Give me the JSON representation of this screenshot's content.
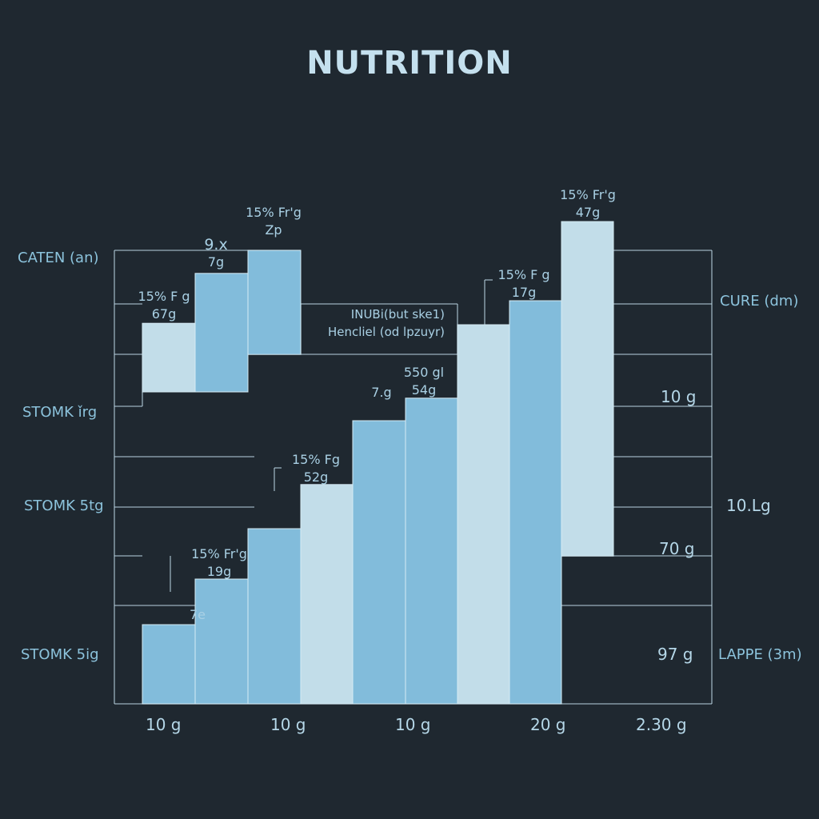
{
  "chart_data": {
    "type": "bar",
    "title": "NUTRITION",
    "x_tick_labels": [
      "10 g",
      "10 g",
      "10 g",
      "20 g",
      "2.30 g"
    ],
    "left_labels": [
      "CATEN (an)",
      "STOMK ǐrg",
      "STOMK 5tg",
      "STOMK 5ig"
    ],
    "right_labels": [
      "CURE (dm)",
      "10 g",
      "10.Lg",
      "70 g",
      "97 g",
      "LAPPE (3m)"
    ],
    "value_scale": "relative height, 0 = baseline, 100 = top of plot frame",
    "bars": [
      {
        "range": [
          65,
          79.3
        ],
        "shade": "light"
      },
      {
        "range": [
          65,
          89.7
        ],
        "shade": "mid"
      },
      {
        "range": [
          72.8,
          94.5
        ],
        "shade": "mid"
      },
      {
        "range": [
          0,
          16.5
        ],
        "shade": "mid"
      },
      {
        "range": [
          0,
          26
        ],
        "shade": "mid"
      },
      {
        "range": [
          0,
          36.5
        ],
        "shade": "mid"
      },
      {
        "range": [
          0,
          45.7
        ],
        "shade": "light"
      },
      {
        "range": [
          0,
          59
        ],
        "shade": "mid"
      },
      {
        "range": [
          0,
          63.7
        ],
        "shade": "mid"
      },
      {
        "range": [
          0,
          79
        ],
        "shade": "light"
      },
      {
        "range": [
          0,
          84
        ],
        "shade": "mid"
      },
      {
        "range": [
          30.8,
          100.5
        ],
        "shade": "light"
      }
    ],
    "data_labels": [
      {
        "line1": "15% Fr'g",
        "line2": "Zp"
      },
      {
        "line1": "9.x",
        "line2": "7g"
      },
      {
        "line1": "15% F g",
        "line2": "67g"
      },
      {
        "line1": "15% Fr'g",
        "line2": "47g"
      },
      {
        "line1": "15% F g",
        "line2": "17g"
      },
      {
        "line1": "550 gl",
        "line2": "54g"
      },
      {
        "line1": "7.g",
        "line2": ""
      },
      {
        "line1": "15% Fg",
        "line2": "52g"
      },
      {
        "line1": "15% Fr'g",
        "line2": "19g"
      },
      {
        "line1": "7e",
        "line2": ""
      }
    ],
    "annotation": {
      "line1": "INUBi(but ske1)",
      "line2": "Hencliel (od lpzuyr)"
    },
    "colors": {
      "background": "#1f2830",
      "light_bar": "#c2dde9",
      "mid_bar": "#82bcdb",
      "grid": "#b9d3df",
      "text": "#a9d0e4"
    },
    "grid": true
  }
}
